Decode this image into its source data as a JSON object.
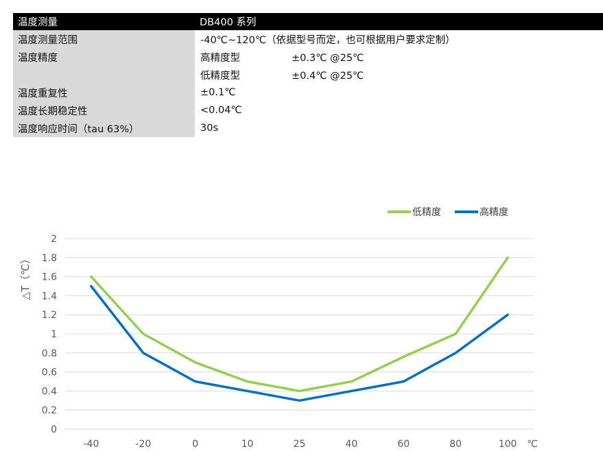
{
  "table": {
    "header": {
      "label": "温度测量",
      "value": "DB400 系列"
    },
    "rows": [
      {
        "label": "温度测量范围",
        "value": "-40℃~120℃（依据型号而定，也可根据用户要求定制）"
      },
      {
        "label": "温度精度",
        "sub": "高精度型",
        "value": "±0.3℃  @25℃"
      },
      {
        "label": "",
        "sub": "低精度型",
        "value": "±0.4℃  @25℃"
      },
      {
        "label": "温度重复性",
        "value": "±0.1℃"
      },
      {
        "label": "温度长期稳定性",
        "value": "<0.04℃"
      },
      {
        "label": "温度响应时间（tau 63%）",
        "value": "30s"
      }
    ]
  },
  "chart_data": {
    "type": "line",
    "categories": [
      "-40",
      "-20",
      "0",
      "10",
      "25",
      "40",
      "60",
      "80",
      "100"
    ],
    "x_unit": "℃",
    "ylabel": "△T（℃）",
    "ylim": [
      0,
      2
    ],
    "yticks": [
      "0",
      "0.2",
      "0.4",
      "0.6",
      "0.8",
      "1",
      "1.2",
      "1.4",
      "1.6",
      "1.8",
      "2"
    ],
    "grid": true,
    "legend": "top-right",
    "series": [
      {
        "name": "低精度",
        "color": "#92d050",
        "values": [
          1.6,
          1.0,
          0.7,
          0.5,
          0.4,
          0.5,
          0.76,
          1.0,
          1.8
        ]
      },
      {
        "name": "高精度",
        "color": "#0070c0",
        "values": [
          1.5,
          0.8,
          0.5,
          0.4,
          0.3,
          0.4,
          0.5,
          0.8,
          1.2
        ]
      }
    ]
  }
}
